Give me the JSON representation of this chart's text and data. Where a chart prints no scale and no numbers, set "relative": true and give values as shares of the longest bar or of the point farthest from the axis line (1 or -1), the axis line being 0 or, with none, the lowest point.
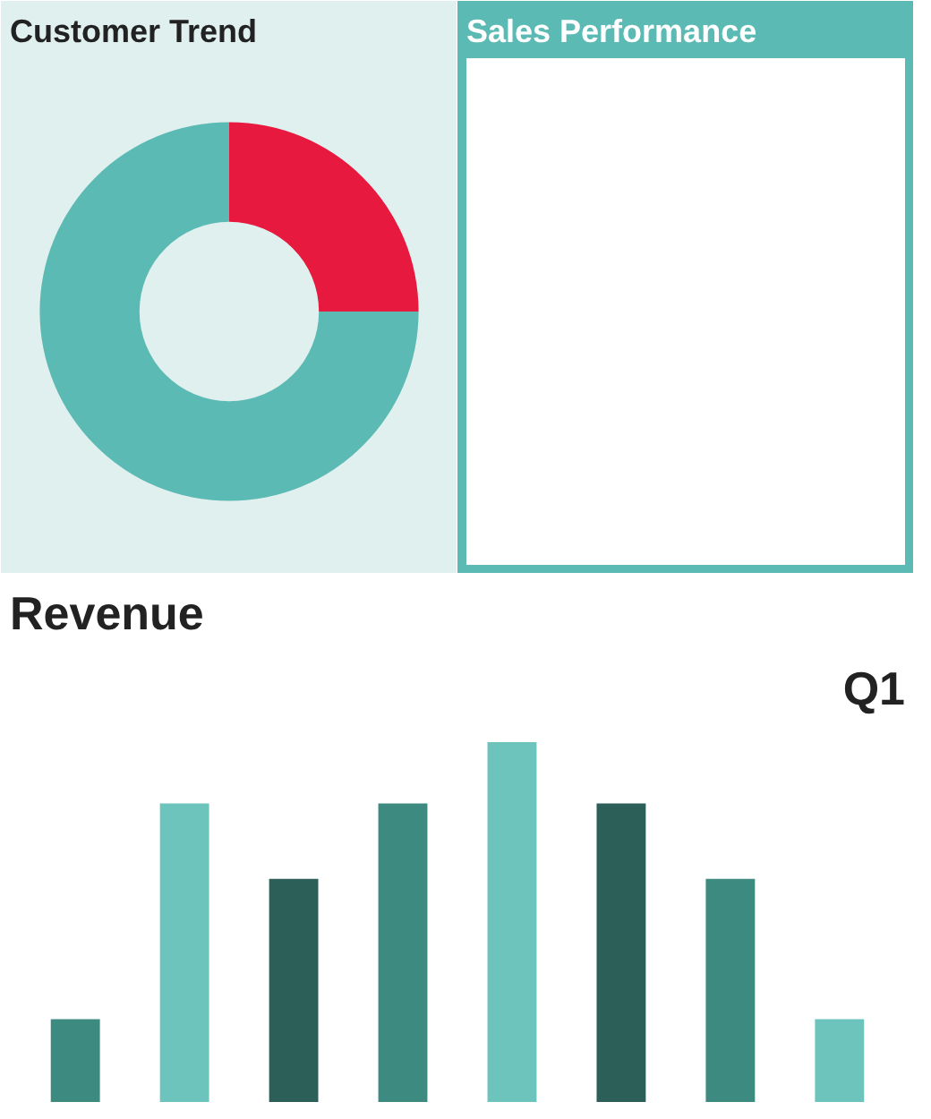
{
  "chart_data": [
    {
      "type": "donut",
      "title": "Customer Trend",
      "categories": [
        null,
        null
      ],
      "values": [
        25,
        75
      ],
      "colors": [
        "#e8193f",
        "#5bbab3"
      ]
    },
    {
      "type": "other",
      "title": "Sales Performance"
    },
    {
      "type": "bar",
      "title": "Revenue",
      "subtitle": "Q1",
      "relative": true,
      "categories": [
        null,
        null,
        null,
        null,
        null,
        null,
        null,
        null
      ],
      "values": [
        0.23,
        0.83,
        0.62,
        0.83,
        1,
        0.83,
        0.62,
        0.23
      ],
      "colors": [
        "#3d8a80",
        "#6cc4bc",
        "#2b5f58",
        "#3d8a80",
        "#6cc4bc",
        "#2b5f58",
        "#3d8a80",
        "#6cc4bc"
      ]
    }
  ]
}
